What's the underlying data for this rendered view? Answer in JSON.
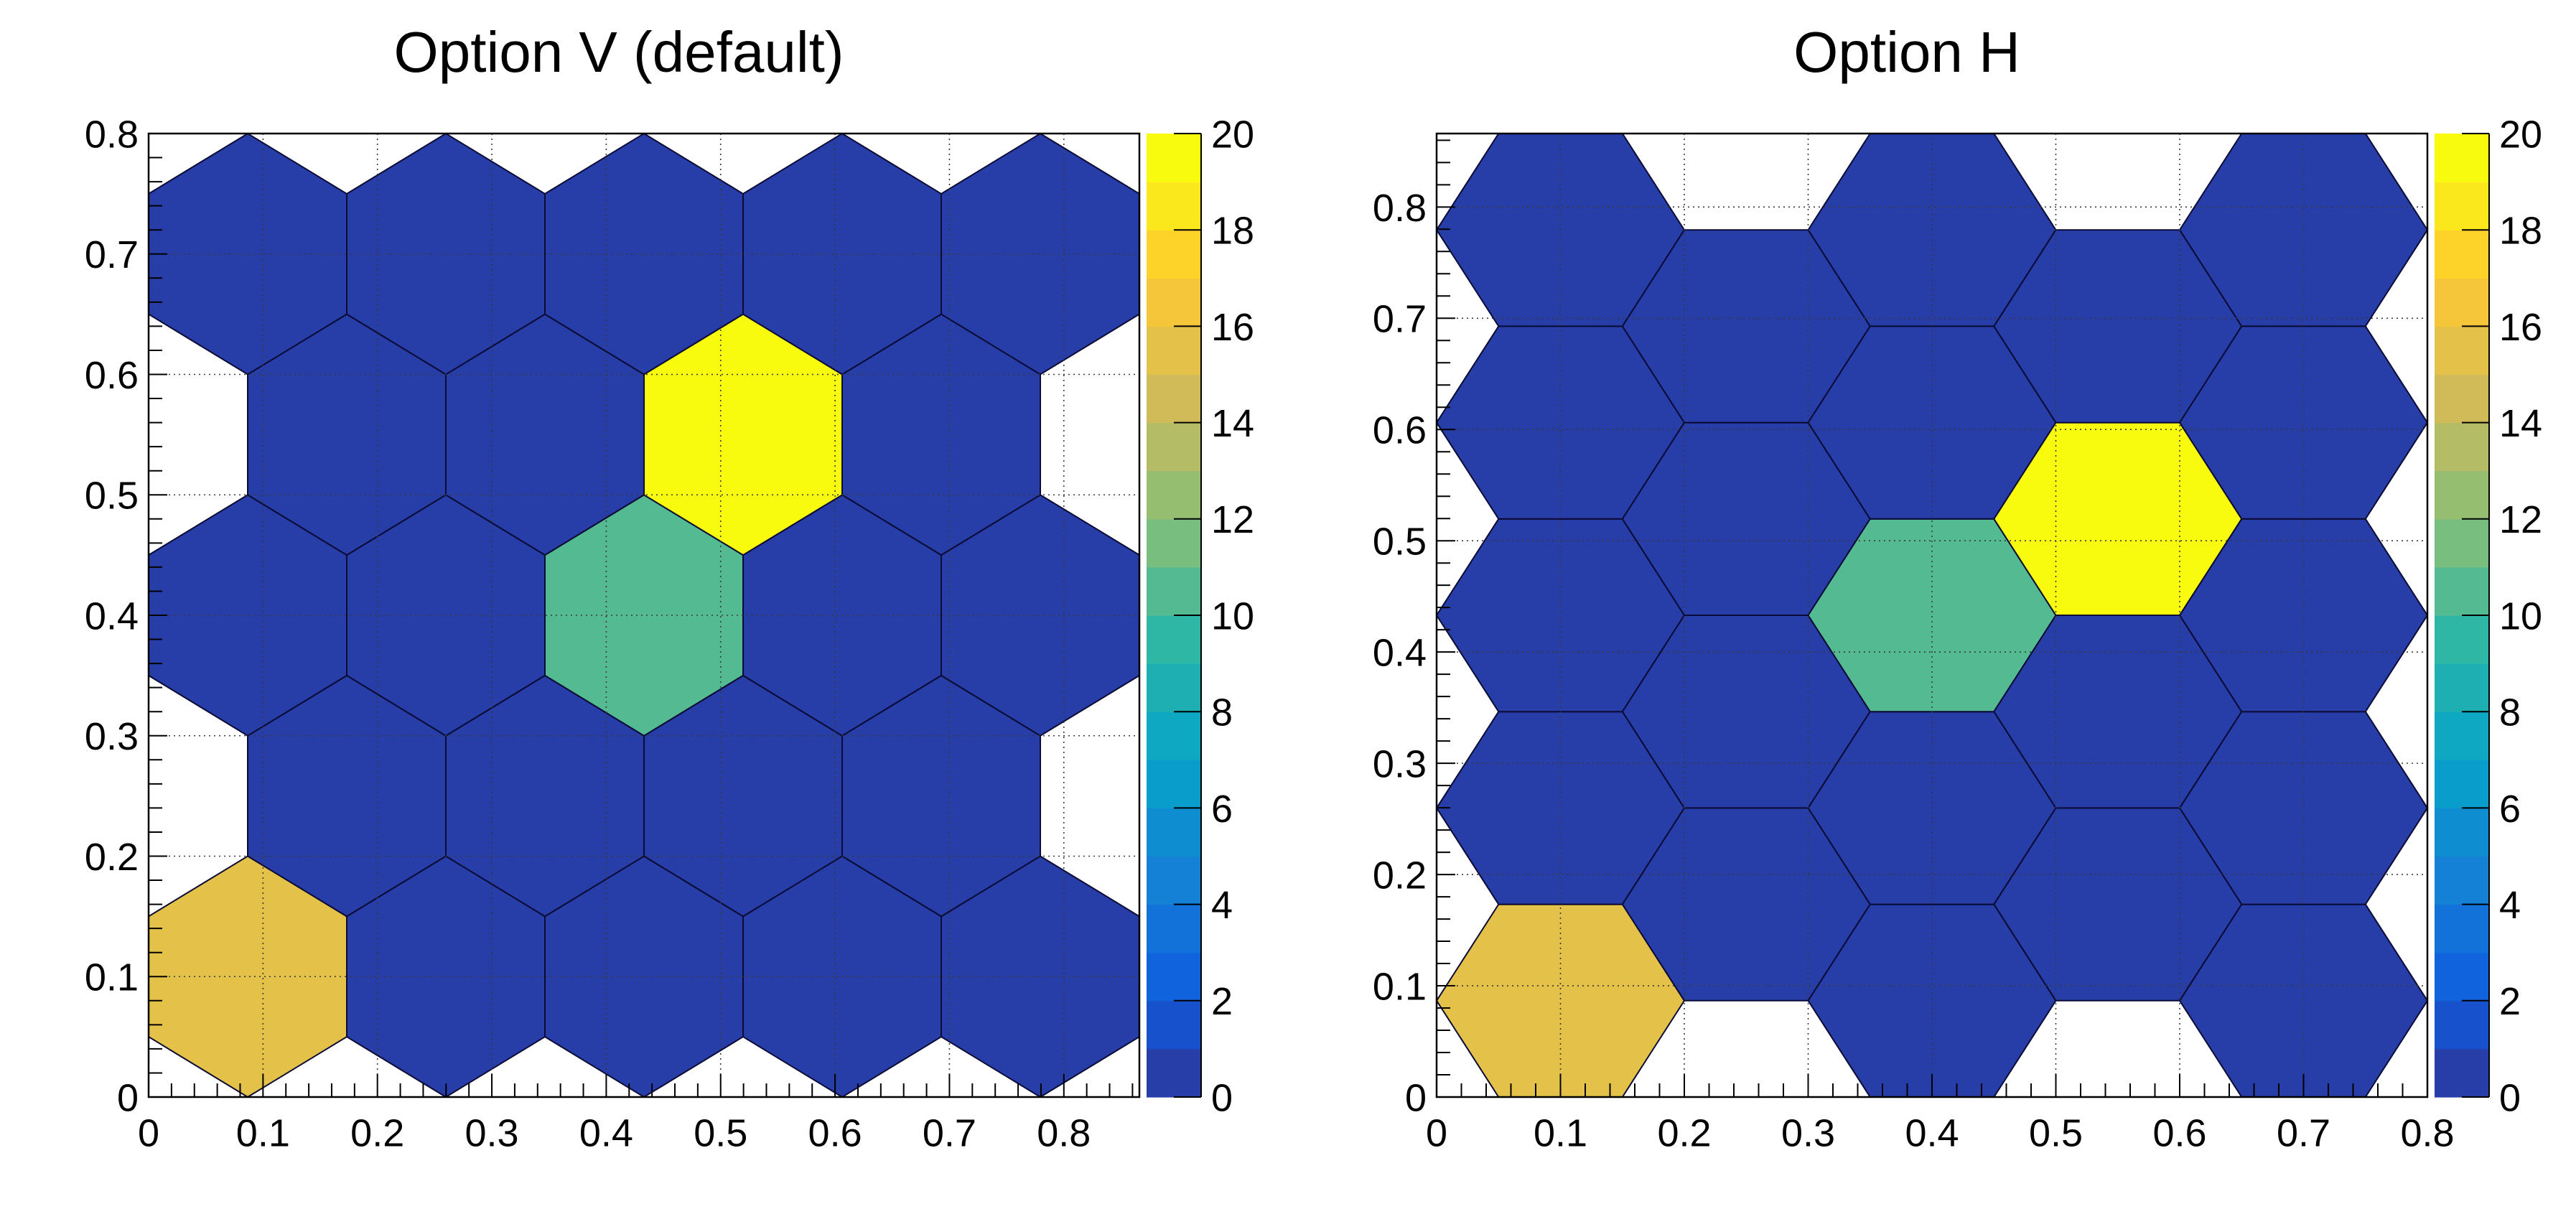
{
  "figure": {
    "background": "#ffffff",
    "frame_color": "#000000",
    "grid_color": "#3a3a3a",
    "hex_border_color": "#0b0b35"
  },
  "palette_bands": [
    "#273DA8",
    "#1751CB",
    "#1063DC",
    "#1272D9",
    "#1480D6",
    "#0E8ED1",
    "#099DCC",
    "#0EA8C2",
    "#1EAFB3",
    "#2EB7A4",
    "#53BA91",
    "#77BE7F",
    "#96BE71",
    "#B4BD65",
    "#D1BB59",
    "#E4C149",
    "#F5C63A",
    "#FDD32A",
    "#FBE81C",
    "#F9FB0E"
  ],
  "chart_data": [
    {
      "type": "heatmap",
      "variant": "th2poly-honeycomb",
      "title": "Option V (default)",
      "honeycomb": {
        "xstart": 0,
        "ystart": 0,
        "side": 0.1,
        "k": 5,
        "s": 5,
        "option": "v"
      },
      "x_range": [
        0,
        0.8660254
      ],
      "y_range": [
        0,
        0.8
      ],
      "x_tick_labels": [
        "0",
        "0.1",
        "0.2",
        "0.3",
        "0.4",
        "0.5",
        "0.6",
        "0.7",
        "0.8"
      ],
      "y_tick_labels": [
        "0",
        "0.1",
        "0.2",
        "0.3",
        "0.4",
        "0.5",
        "0.6",
        "0.7",
        "0.8"
      ],
      "major_tick_step": 0.1,
      "minor_tick_step": 0.02,
      "grid": {
        "shown": true,
        "style": "dotted"
      },
      "default_bin_value": 0,
      "fills": [
        {
          "x": 0.1,
          "y": 0.1,
          "value": 15
        },
        {
          "x": 0.4,
          "y": 0.4,
          "value": 10
        },
        {
          "x": 0.5,
          "y": 0.5,
          "value": 20
        }
      ],
      "z_range": [
        0,
        20
      ],
      "colorbar": {
        "position": "right",
        "tick_step": 2,
        "tick_labels": [
          "0",
          "2",
          "4",
          "6",
          "8",
          "10",
          "12",
          "14",
          "16",
          "18",
          "20"
        ]
      }
    },
    {
      "type": "heatmap",
      "variant": "th2poly-honeycomb",
      "title": "Option H",
      "honeycomb": {
        "xstart": 0,
        "ystart": 0,
        "side": 0.1,
        "k": 5,
        "s": 5,
        "option": "h"
      },
      "x_range": [
        0,
        0.8
      ],
      "y_range": [
        0,
        0.8660254
      ],
      "x_tick_labels": [
        "0",
        "0.1",
        "0.2",
        "0.3",
        "0.4",
        "0.5",
        "0.6",
        "0.7",
        "0.8"
      ],
      "y_tick_labels": [
        "0",
        "0.1",
        "0.2",
        "0.3",
        "0.4",
        "0.5",
        "0.6",
        "0.7",
        "0.8"
      ],
      "major_tick_step": 0.1,
      "minor_tick_step": 0.02,
      "grid": {
        "shown": true,
        "style": "dotted"
      },
      "default_bin_value": 0,
      "fills": [
        {
          "x": 0.1,
          "y": 0.1,
          "value": 15
        },
        {
          "x": 0.4,
          "y": 0.4,
          "value": 10
        },
        {
          "x": 0.5,
          "y": 0.5,
          "value": 20
        }
      ],
      "z_range": [
        0,
        20
      ],
      "colorbar": {
        "position": "right",
        "tick_step": 2,
        "tick_labels": [
          "0",
          "2",
          "4",
          "6",
          "8",
          "10",
          "12",
          "14",
          "16",
          "18",
          "20"
        ]
      }
    }
  ]
}
